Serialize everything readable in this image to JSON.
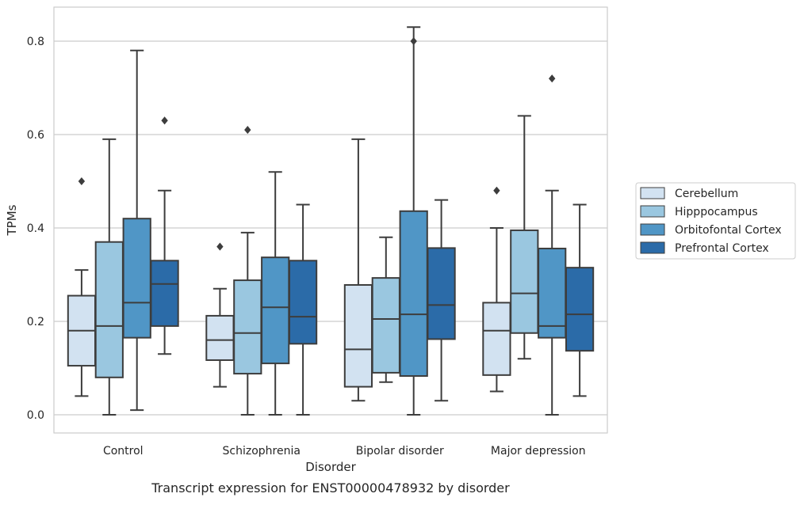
{
  "chart_data": {
    "type": "box",
    "caption": "Transcript expression for ENST00000478932 by disorder",
    "xlabel": "Disorder",
    "ylabel": "TPMs",
    "ylim": [
      -0.04,
      0.875
    ],
    "yticks": [
      0.0,
      0.2,
      0.4,
      0.6,
      0.8
    ],
    "ytick_labels": [
      "0.0",
      "0.2",
      "0.4",
      "0.6",
      "0.8"
    ],
    "grid": "horizontal",
    "legend_position": "right",
    "categories": [
      "Control",
      "Schizophrenia",
      "Bipolar disorder",
      "Major depression"
    ],
    "series": [
      {
        "name": "Cerebellum",
        "color": "#d2e2f1",
        "boxes": [
          {
            "whislo": 0.04,
            "q1": 0.105,
            "med": 0.18,
            "q3": 0.255,
            "whishi": 0.31,
            "fliers": [
              0.5
            ]
          },
          {
            "whislo": 0.06,
            "q1": 0.117,
            "med": 0.16,
            "q3": 0.212,
            "whishi": 0.27,
            "fliers": [
              0.36
            ]
          },
          {
            "whislo": 0.03,
            "q1": 0.06,
            "med": 0.14,
            "q3": 0.278,
            "whishi": 0.59,
            "fliers": []
          },
          {
            "whislo": 0.05,
            "q1": 0.085,
            "med": 0.18,
            "q3": 0.24,
            "whishi": 0.4,
            "fliers": [
              0.48
            ]
          }
        ]
      },
      {
        "name": "Hipppocampus",
        "color": "#9ac7e0",
        "boxes": [
          {
            "whislo": 0.0,
            "q1": 0.08,
            "med": 0.19,
            "q3": 0.37,
            "whishi": 0.59,
            "fliers": []
          },
          {
            "whislo": 0.0,
            "q1": 0.088,
            "med": 0.175,
            "q3": 0.288,
            "whishi": 0.39,
            "fliers": [
              0.61
            ]
          },
          {
            "whislo": 0.07,
            "q1": 0.09,
            "med": 0.205,
            "q3": 0.293,
            "whishi": 0.38,
            "fliers": []
          },
          {
            "whislo": 0.12,
            "q1": 0.175,
            "med": 0.26,
            "q3": 0.395,
            "whishi": 0.64,
            "fliers": []
          }
        ]
      },
      {
        "name": "Orbitofontal Cortex",
        "color": "#5096c6",
        "boxes": [
          {
            "whislo": 0.01,
            "q1": 0.165,
            "med": 0.24,
            "q3": 0.42,
            "whishi": 0.78,
            "fliers": []
          },
          {
            "whislo": 0.0,
            "q1": 0.11,
            "med": 0.23,
            "q3": 0.337,
            "whishi": 0.52,
            "fliers": []
          },
          {
            "whislo": 0.0,
            "q1": 0.083,
            "med": 0.215,
            "q3": 0.436,
            "whishi": 0.83,
            "fliers": [
              0.8
            ]
          },
          {
            "whislo": 0.0,
            "q1": 0.165,
            "med": 0.19,
            "q3": 0.356,
            "whishi": 0.48,
            "fliers": [
              0.72
            ]
          }
        ]
      },
      {
        "name": "Prefrontal Cortex",
        "color": "#2b6ba8",
        "boxes": [
          {
            "whislo": 0.13,
            "q1": 0.19,
            "med": 0.28,
            "q3": 0.33,
            "whishi": 0.48,
            "fliers": [
              0.63
            ]
          },
          {
            "whislo": 0.0,
            "q1": 0.152,
            "med": 0.21,
            "q3": 0.33,
            "whishi": 0.45,
            "fliers": []
          },
          {
            "whislo": 0.03,
            "q1": 0.162,
            "med": 0.235,
            "q3": 0.357,
            "whishi": 0.46,
            "fliers": []
          },
          {
            "whislo": 0.04,
            "q1": 0.137,
            "med": 0.215,
            "q3": 0.315,
            "whishi": 0.45,
            "fliers": []
          }
        ]
      }
    ]
  }
}
